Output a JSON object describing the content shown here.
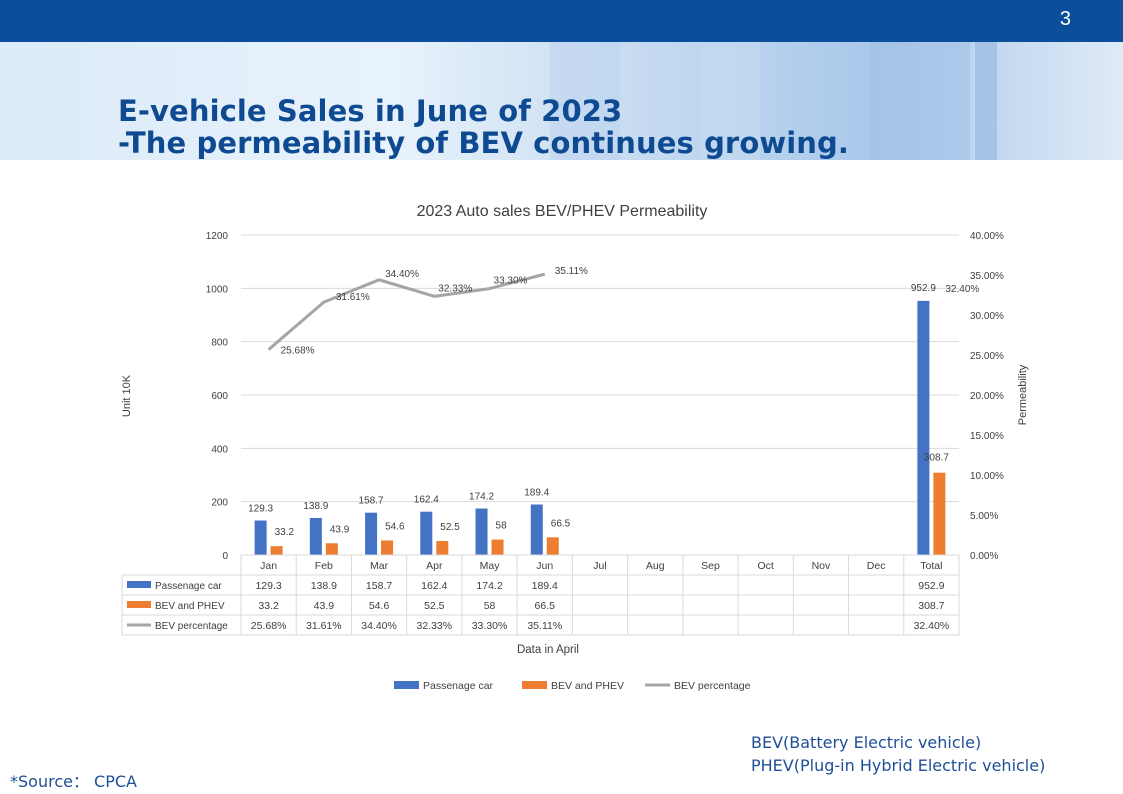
{
  "page_number": "3",
  "title_line1": "E-vehicle Sales in June of 2023",
  "title_line2": "-The permeability of BEV continues growing.",
  "notes": {
    "bev": "BEV(Battery Electric vehicle)",
    "phev": "PHEV(Plug-in Hybrid Electric vehicle)",
    "source": "*Source：  CPCA"
  },
  "colors": {
    "header_bar": "#0b4f9c",
    "title": "#0e4a92",
    "passenger": "#4472c4",
    "bev_phev": "#ed7d31",
    "bev_pct": "#a5a5a5"
  },
  "chart_data": {
    "type": "bar",
    "title": "2023 Auto sales BEV/PHEV Permeability",
    "xlabel": "Data in April",
    "ylabel": "Unit 10K",
    "y2label": "Permeability",
    "ylim": [
      0,
      1200
    ],
    "yticks": [
      "0",
      "200",
      "400",
      "600",
      "800",
      "1000",
      "1200"
    ],
    "y2lim": [
      0,
      40
    ],
    "y2ticks": [
      "0.00%",
      "5.00%",
      "10.00%",
      "15.00%",
      "20.00%",
      "25.00%",
      "30.00%",
      "35.00%",
      "40.00%"
    ],
    "grid": true,
    "legend_position": "bottom",
    "categories": [
      "Jan",
      "Feb",
      "Mar",
      "Apr",
      "May",
      "Jun",
      "Jul",
      "Aug",
      "Sep",
      "Oct",
      "Nov",
      "Dec",
      "Total"
    ],
    "series": [
      {
        "name": "Passenage car",
        "kind": "bar",
        "axis": "left",
        "values": [
          129.3,
          138.9,
          158.7,
          162.4,
          174.2,
          189.4,
          null,
          null,
          null,
          null,
          null,
          null,
          952.9
        ],
        "labels": [
          "129.3",
          "138.9",
          "158.7",
          "162.4",
          "174.2",
          "189.4",
          "",
          "",
          "",
          "",
          "",
          "",
          "952.9"
        ]
      },
      {
        "name": "BEV and PHEV",
        "kind": "bar",
        "axis": "left",
        "values": [
          33.2,
          43.9,
          54.6,
          52.5,
          58,
          66.5,
          null,
          null,
          null,
          null,
          null,
          null,
          308.7
        ],
        "labels": [
          "33.2",
          "43.9",
          "54.6",
          "52.5",
          "58",
          "66.5",
          "",
          "",
          "",
          "",
          "",
          "",
          "308.7"
        ]
      },
      {
        "name": "BEV percentage",
        "kind": "line",
        "axis": "right",
        "values": [
          25.68,
          31.61,
          34.4,
          32.33,
          33.3,
          35.11,
          null,
          null,
          null,
          null,
          null,
          null,
          32.4
        ],
        "labels": [
          "25.68%",
          "31.61%",
          "34.40%",
          "32.33%",
          "33.30%",
          "35.11%",
          "",
          "",
          "",
          "",
          "",
          "",
          "32.40%"
        ]
      }
    ]
  }
}
